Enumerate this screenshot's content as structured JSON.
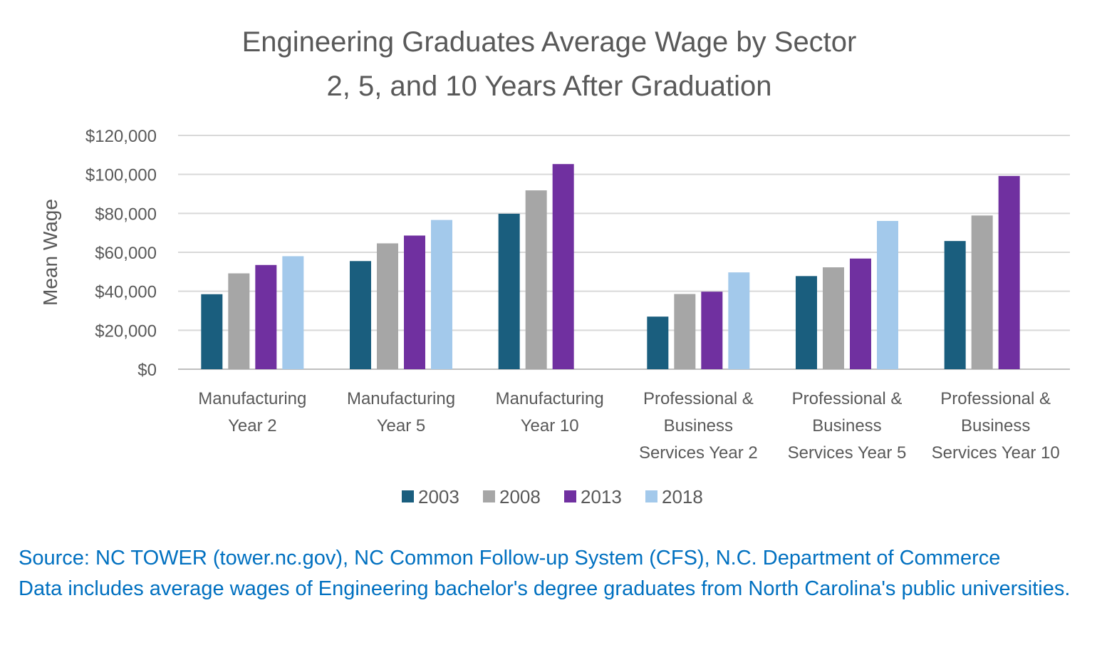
{
  "chart_data": {
    "type": "bar",
    "title": [
      "Engineering Graduates Average Wage by Sector",
      "2, 5, and 10 Years After Graduation"
    ],
    "ylabel": "Mean Wage",
    "xlabel": "",
    "ylim": [
      0,
      120000
    ],
    "yticks": [
      0,
      20000,
      40000,
      60000,
      80000,
      100000,
      120000
    ],
    "ytick_labels": [
      "$0",
      "$20,000",
      "$40,000",
      "$60,000",
      "$80,000",
      "$100,000",
      "$120,000"
    ],
    "categories": [
      [
        "Manufacturing",
        "Year 2"
      ],
      [
        "Manufacturing",
        "Year 5"
      ],
      [
        "Manufacturing",
        "Year 10"
      ],
      [
        "Professional &",
        "Business",
        "Services Year 2"
      ],
      [
        "Professional &",
        "Business",
        "Services Year 5"
      ],
      [
        "Professional &",
        "Business",
        "Services Year 10"
      ]
    ],
    "series": [
      {
        "name": "2003",
        "color": "#1a5e7e",
        "values": [
          38500,
          55500,
          79800,
          27000,
          47800,
          65800
        ]
      },
      {
        "name": "2008",
        "color": "#a6a6a6",
        "values": [
          49200,
          64600,
          91800,
          38600,
          52300,
          78900
        ]
      },
      {
        "name": "2013",
        "color": "#7030a0",
        "values": [
          53500,
          68600,
          105300,
          39800,
          56800,
          99200
        ]
      },
      {
        "name": "2018",
        "color": "#a3c9eb",
        "values": [
          58000,
          76600,
          null,
          49700,
          76100,
          null
        ]
      }
    ],
    "grid": true,
    "legend_position": "bottom"
  },
  "source_lines": [
    "Source: NC TOWER (tower.nc.gov), NC Common Follow-up System (CFS), N.C. Department of Commerce",
    "Data includes average wages of Engineering bachelor's degree graduates from North Carolina's public universities."
  ]
}
